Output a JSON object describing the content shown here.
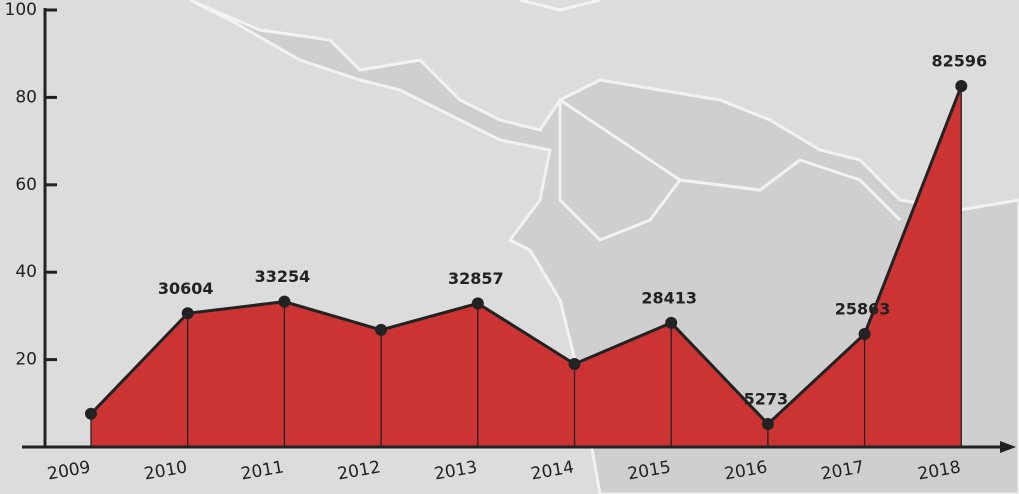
{
  "chart_data": {
    "type": "area",
    "categories": [
      "2009",
      "2010",
      "2011",
      "2012",
      "2013",
      "2014",
      "2015",
      "2016",
      "2017",
      "2018"
    ],
    "values": [
      7.6,
      30.604,
      33.254,
      26.8,
      32.857,
      19.0,
      28.413,
      5.273,
      25.863,
      82.596
    ],
    "value_labels": [
      null,
      "30604",
      "33254",
      null,
      "32857",
      null,
      "28413",
      "5273",
      "25863",
      "82596"
    ],
    "color": "#cc3333",
    "ylim": [
      0,
      100
    ],
    "yticks": [
      20,
      40,
      60,
      80,
      100
    ]
  }
}
